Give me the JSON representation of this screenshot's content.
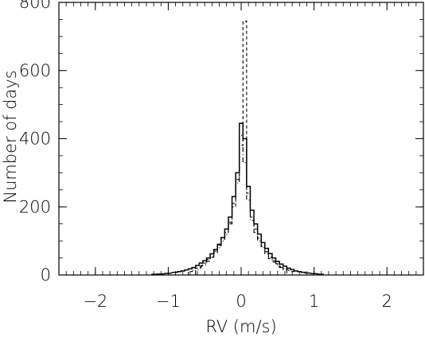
{
  "chart_data": {
    "type": "histogram",
    "xlabel": "RV (m/s)",
    "ylabel": "Number of days",
    "xlim": [
      -2.5,
      2.5
    ],
    "ylim": [
      0,
      800
    ],
    "x_ticks": [
      -2,
      -1,
      0,
      1,
      2
    ],
    "x_tick_labels": [
      "−2",
      "−1",
      "0",
      "1",
      "2"
    ],
    "y_ticks": [
      0,
      200,
      400,
      600,
      800
    ],
    "y_tick_labels": [
      "0",
      "200",
      "400",
      "600",
      "800"
    ],
    "bin_width": 0.05,
    "grid": false,
    "series": [
      {
        "style": "solid",
        "bins": [
          [
            -1.2,
            2
          ],
          [
            -1.1,
            3
          ],
          [
            -1.0,
            5
          ],
          [
            -0.9,
            8
          ],
          [
            -0.85,
            10
          ],
          [
            -0.8,
            12
          ],
          [
            -0.75,
            15
          ],
          [
            -0.7,
            18
          ],
          [
            -0.65,
            22
          ],
          [
            -0.6,
            28
          ],
          [
            -0.55,
            35
          ],
          [
            -0.5,
            42
          ],
          [
            -0.45,
            50
          ],
          [
            -0.4,
            62
          ],
          [
            -0.35,
            75
          ],
          [
            -0.3,
            90
          ],
          [
            -0.25,
            110
          ],
          [
            -0.2,
            135
          ],
          [
            -0.15,
            170
          ],
          [
            -0.1,
            230
          ],
          [
            -0.05,
            300
          ],
          [
            0.0,
            445
          ],
          [
            0.05,
            400
          ],
          [
            0.1,
            260
          ],
          [
            0.15,
            190
          ],
          [
            0.2,
            150
          ],
          [
            0.25,
            120
          ],
          [
            0.3,
            95
          ],
          [
            0.35,
            78
          ],
          [
            0.4,
            63
          ],
          [
            0.45,
            50
          ],
          [
            0.5,
            40
          ],
          [
            0.55,
            32
          ],
          [
            0.6,
            26
          ],
          [
            0.65,
            20
          ],
          [
            0.7,
            16
          ],
          [
            0.75,
            12
          ],
          [
            0.8,
            10
          ],
          [
            0.85,
            8
          ],
          [
            0.9,
            6
          ],
          [
            1.0,
            4
          ],
          [
            1.1,
            2
          ]
        ]
      },
      {
        "style": "dashed",
        "bins": [
          [
            -0.7,
            10
          ],
          [
            -0.6,
            20
          ],
          [
            -0.5,
            35
          ],
          [
            -0.45,
            45
          ],
          [
            -0.4,
            55
          ],
          [
            -0.35,
            70
          ],
          [
            -0.3,
            88
          ],
          [
            -0.25,
            105
          ],
          [
            -0.2,
            125
          ],
          [
            -0.15,
            155
          ],
          [
            -0.1,
            200
          ],
          [
            -0.05,
            280
          ],
          [
            0.0,
            380
          ],
          [
            0.05,
            745
          ],
          [
            0.1,
            240
          ],
          [
            0.15,
            170
          ],
          [
            0.2,
            135
          ],
          [
            0.25,
            108
          ],
          [
            0.3,
            85
          ],
          [
            0.35,
            68
          ],
          [
            0.4,
            52
          ],
          [
            0.45,
            42
          ],
          [
            0.5,
            33
          ],
          [
            0.55,
            25
          ],
          [
            0.6,
            18
          ],
          [
            0.7,
            10
          ]
        ]
      },
      {
        "style": "dash-dot",
        "bins": [
          [
            -0.6,
            15
          ],
          [
            -0.5,
            30
          ],
          [
            -0.45,
            40
          ],
          [
            -0.4,
            52
          ],
          [
            -0.35,
            65
          ],
          [
            -0.3,
            80
          ],
          [
            -0.25,
            100
          ],
          [
            -0.2,
            120
          ],
          [
            -0.15,
            150
          ],
          [
            -0.1,
            210
          ],
          [
            -0.05,
            270
          ],
          [
            0.0,
            410
          ],
          [
            0.05,
            330
          ],
          [
            0.1,
            220
          ],
          [
            0.15,
            160
          ],
          [
            0.2,
            125
          ],
          [
            0.25,
            100
          ],
          [
            0.3,
            80
          ],
          [
            0.35,
            62
          ],
          [
            0.4,
            48
          ],
          [
            0.45,
            38
          ],
          [
            0.5,
            30
          ],
          [
            0.55,
            22
          ],
          [
            0.6,
            16
          ]
        ]
      }
    ]
  }
}
